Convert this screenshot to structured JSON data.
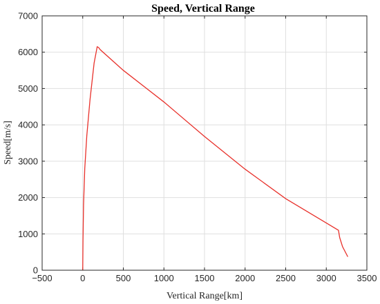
{
  "chart_data": {
    "type": "line",
    "title": "Speed, Vertical Range",
    "xlabel": "Vertical Range[km]",
    "ylabel": "Speed[m/s]",
    "xlim": [
      -500,
      3500
    ],
    "ylim": [
      0,
      7000
    ],
    "xticks": [
      "−500",
      "0",
      "500",
      "1000",
      "1500",
      "2000",
      "2500",
      "3000",
      "3500"
    ],
    "yticks": [
      "0",
      "1000",
      "2000",
      "3000",
      "4000",
      "5000",
      "6000",
      "7000"
    ],
    "grid": true,
    "series": [
      {
        "color": "#e8302a",
        "x": [
          0,
          3,
          10,
          25,
          50,
          90,
          140,
          178,
          195,
          215,
          500,
          1000,
          1500,
          2000,
          2500,
          3000,
          3150,
          3165,
          3200,
          3265
        ],
        "y": [
          0,
          800,
          1800,
          2800,
          3700,
          4700,
          5700,
          6150,
          6130,
          6070,
          5500,
          4630,
          3680,
          2780,
          1970,
          1300,
          1100,
          900,
          650,
          370
        ]
      }
    ]
  }
}
